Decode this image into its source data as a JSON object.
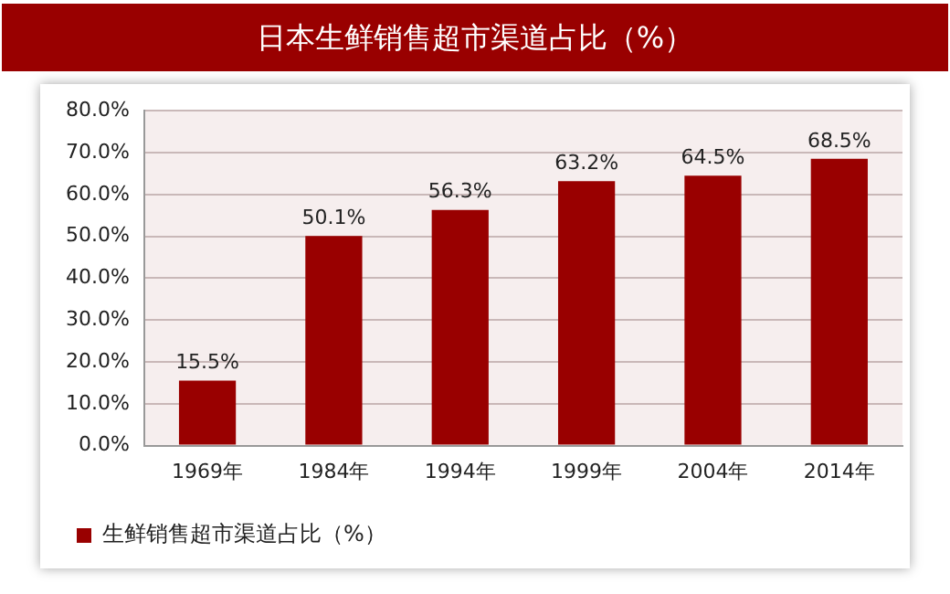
{
  "chart_data": {
    "type": "bar",
    "title": "日本生鲜销售超市渠道占比（%）",
    "categories": [
      "1969年",
      "1984年",
      "1994年",
      "1999年",
      "2004年",
      "2014年"
    ],
    "series": [
      {
        "name": "生鲜销售超市渠道占比（%）",
        "color": "#990000",
        "values": [
          15.5,
          50.1,
          56.3,
          63.2,
          64.5,
          68.5
        ]
      }
    ],
    "ylim": [
      0,
      80
    ],
    "yticks": [
      {
        "value": 0,
        "label": "0.0%"
      },
      {
        "value": 10,
        "label": "10.0%"
      },
      {
        "value": 20,
        "label": "20.0%"
      },
      {
        "value": 30,
        "label": "30.0%"
      },
      {
        "value": 40,
        "label": "40.0%"
      },
      {
        "value": 50,
        "label": "50.0%"
      },
      {
        "value": 60,
        "label": "60.0%"
      },
      {
        "value": 70,
        "label": "70.0%"
      },
      {
        "value": 80,
        "label": "80.0%"
      }
    ],
    "value_labels": [
      "15.5%",
      "50.1%",
      "56.3%",
      "63.2%",
      "64.5%",
      "68.5%"
    ],
    "grid": "y",
    "legend": "bottom"
  }
}
